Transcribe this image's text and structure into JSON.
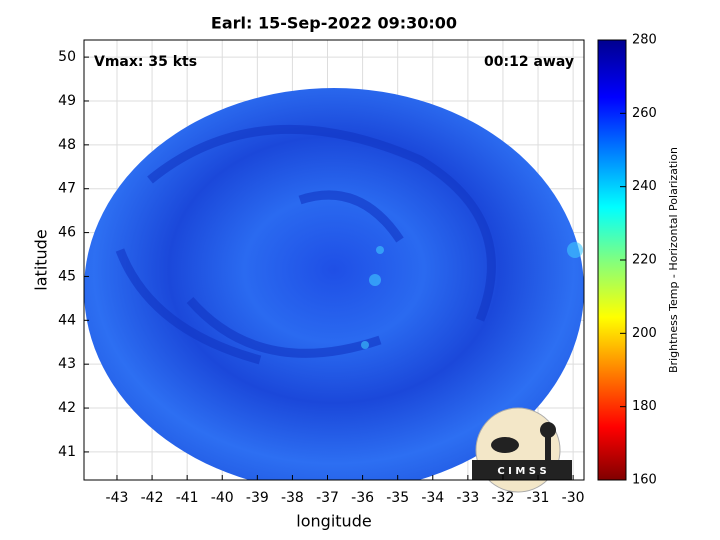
{
  "chart_data": {
    "type": "image",
    "title": "Earl: 15-Sep-2022 09:30:00",
    "annotations": [
      "Vmax: 35 kts",
      "00:12 away"
    ],
    "xlabel": "longitude",
    "ylabel": "latitude",
    "xlim": [
      -43.94,
      -29.69
    ],
    "ylim": [
      40.36,
      50.39
    ],
    "xticks": [
      -43,
      -42,
      -41,
      -40,
      -39,
      -38,
      -37,
      -36,
      -35,
      -34,
      -33,
      -32,
      -31,
      -30
    ],
    "yticks": [
      41,
      42,
      43,
      44,
      45,
      46,
      47,
      48,
      49,
      50
    ],
    "grid": true,
    "colorbar": {
      "label": "Brightness Temp - Horizontal Polarization",
      "lim": [
        160,
        280
      ],
      "ticks": [
        160,
        180,
        200,
        220,
        240,
        260,
        280
      ]
    },
    "logo": "C I M S S"
  }
}
